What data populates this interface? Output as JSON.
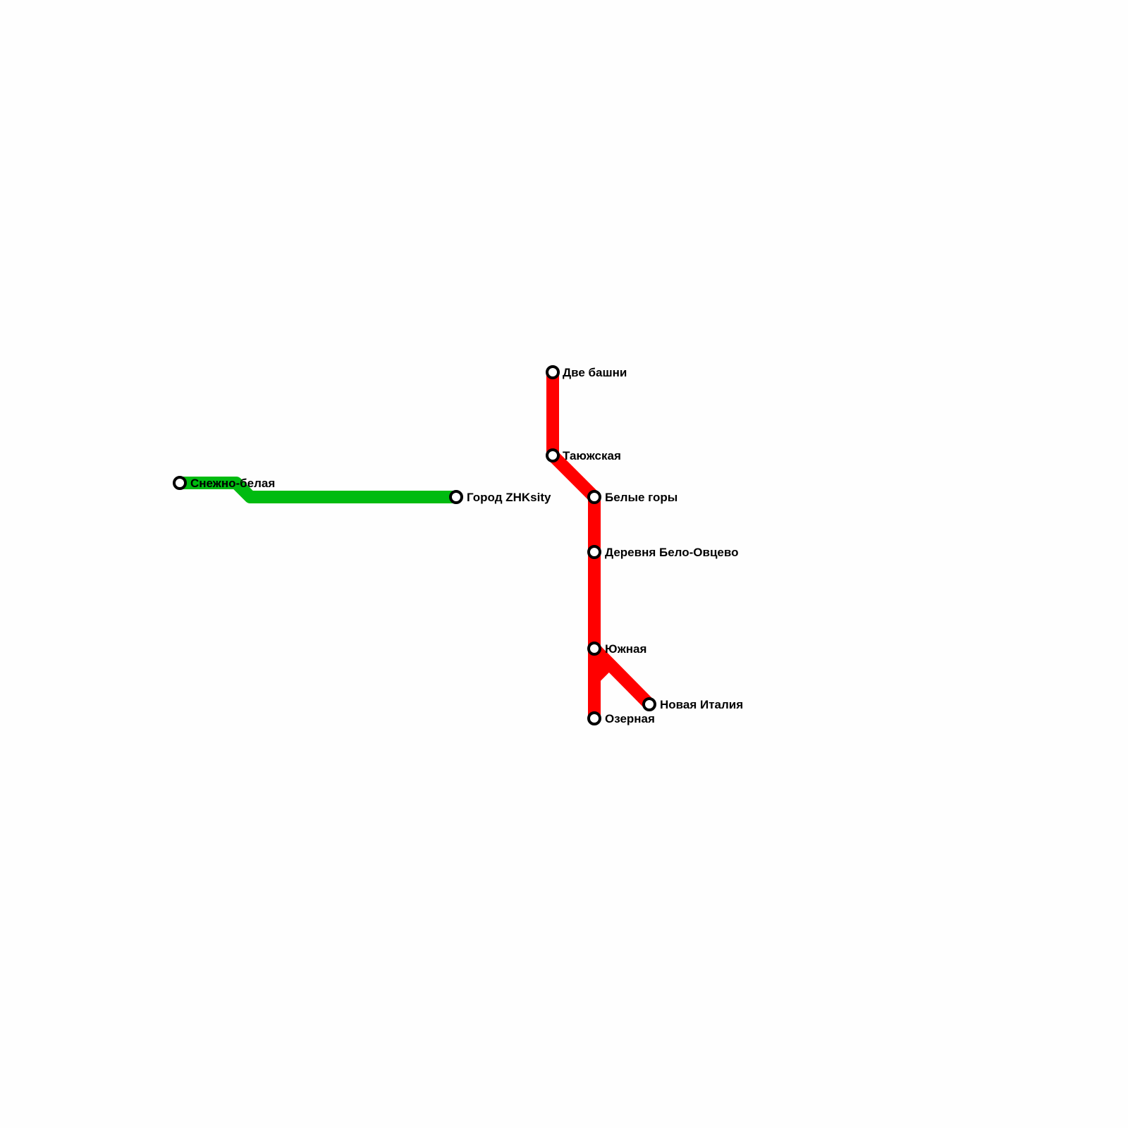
{
  "lines": [
    {
      "name": "green-line",
      "color": "#00bb10"
    },
    {
      "name": "red-line",
      "color": "#ff0000"
    }
  ],
  "stations": {
    "snezhno_belaya": "Снежно-белая",
    "gorod_zhksity": "Город ZHKsity",
    "dve_bashni": "Две башни",
    "tayuzhskaya": "Таюжская",
    "belye_gory": "Белые горы",
    "derevnya": "Деревня Бело-Овцево",
    "yuzhnaya": "Южная",
    "novaya_italiya": "Новая Италия",
    "ozernaya": "Озерная"
  }
}
